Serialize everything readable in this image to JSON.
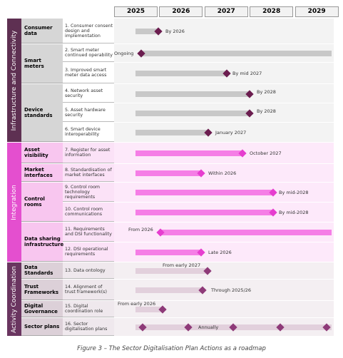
{
  "header": {
    "years": [
      "2025",
      "2026",
      "2027",
      "2028",
      "2029"
    ]
  },
  "sections": [
    {
      "title": "Infrastructure and Connectivity",
      "groups": [
        {
          "label": "Consumer data",
          "actions": [
            {
              "text": "1. Consumer consent design and implementation",
              "note": "By 2026"
            }
          ]
        },
        {
          "label": "Smart meters",
          "actions": [
            {
              "text": "2. Smart meter continued operability",
              "note": "Ongoing"
            },
            {
              "text": "3. Improved smart meter data access",
              "note": "By mid 2027"
            }
          ]
        },
        {
          "label": "Device standards",
          "actions": [
            {
              "text": "4. Network asset security",
              "note": "By 2028"
            },
            {
              "text": "5. Asset hardware security",
              "note": "By 2028"
            },
            {
              "text": "6. Smart device interoperability",
              "note": "January 2027"
            }
          ]
        }
      ]
    },
    {
      "title": "Integration",
      "groups": [
        {
          "label": "Asset visibility",
          "actions": [
            {
              "text": "7. Register for asset information",
              "note": "October 2027"
            }
          ]
        },
        {
          "label": "Market interfaces",
          "actions": [
            {
              "text": "8. Standardisation of market interfaces",
              "note": "Within 2026"
            }
          ]
        },
        {
          "label": "Control rooms",
          "actions": [
            {
              "text": "9. Control room technology requirements",
              "note": "By mid-2028"
            },
            {
              "text": "10. Control room communications",
              "note": "By mid-2028"
            }
          ]
        },
        {
          "label": "Data sharing infrastructure",
          "actions": [
            {
              "text": "11. Requirements and DSI functionality",
              "note": "From 2026"
            },
            {
              "text": "12. DSI operational requirements",
              "note": "Late 2026"
            }
          ]
        }
      ]
    },
    {
      "title": "Activity Coordination",
      "groups": [
        {
          "label": "Data Standards",
          "actions": [
            {
              "text": "13. Data ontology",
              "note": "From early 2027"
            }
          ]
        },
        {
          "label": "Trust Frameworks",
          "actions": [
            {
              "text": "14. Alignment of trust framework(s)",
              "note": "Through 2025/26"
            }
          ]
        },
        {
          "label": "Digital Governance",
          "actions": [
            {
              "text": "15. Digital coordination role",
              "note": "From early 2026"
            }
          ]
        },
        {
          "label": "Sector plans",
          "actions": [
            {
              "text": "16. Sector digitalisation plans",
              "note": "Annually"
            }
          ]
        }
      ]
    }
  ],
  "caption": "Figure 3 – The Sector Digitalisation Plan Actions as a roadmap"
}
